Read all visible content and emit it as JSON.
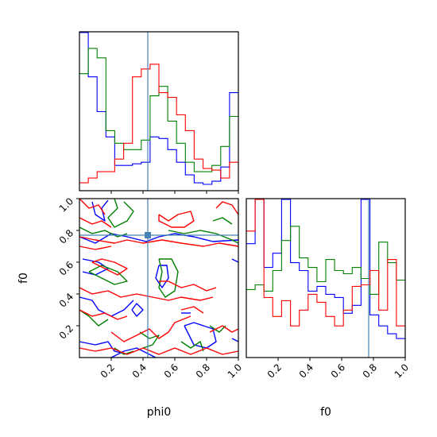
{
  "chart_data": {
    "type": "corner",
    "parameters": [
      "phi0",
      "f0"
    ],
    "axis_labels": {
      "x_left": "phi0",
      "x_right": "f0",
      "y_left": "f0"
    },
    "ticks": [
      "0.2",
      "0.4",
      "0.6",
      "0.8",
      "1.0"
    ],
    "tick_values": [
      0.2,
      0.4,
      0.6,
      0.8,
      1.0
    ],
    "xlim": [
      0,
      1
    ],
    "ylim": [
      0,
      1
    ],
    "truth": {
      "phi0": 0.43,
      "f0": 0.77
    },
    "colors": {
      "blue": "#0000ff",
      "green": "#008000",
      "red": "#ff0000",
      "truth": "#4682b4"
    },
    "series": [
      {
        "color": "blue",
        "hist_phi0": [
          1.0,
          0.72,
          0.5,
          0.34,
          0.16,
          0.16,
          0.17,
          0.18,
          0.34,
          0.33,
          0.26,
          0.18,
          0.1,
          0.05,
          0.04,
          0.06,
          0.15,
          0.62
        ],
        "hist_f0": [
          0.72,
          1.0,
          0.57,
          0.66,
          1.0,
          0.6,
          0.55,
          0.42,
          0.45,
          0.4,
          0.38,
          0.28,
          0.33,
          1.0,
          0.27,
          0.2,
          0.15,
          0.12
        ],
        "contours": [
          [
            [
              0.08,
              0.98
            ],
            [
              0.1,
              0.9
            ],
            [
              0.16,
              0.86
            ],
            [
              0.14,
              0.94
            ],
            [
              0.18,
              0.99
            ]
          ],
          [
            [
              0.0,
              0.76
            ],
            [
              0.1,
              0.72
            ],
            [
              0.2,
              0.78
            ],
            [
              0.3,
              0.76
            ],
            [
              0.42,
              0.73
            ],
            [
              0.5,
              0.76
            ],
            [
              0.6,
              0.78
            ],
            [
              0.72,
              0.76
            ],
            [
              0.84,
              0.73
            ],
            [
              1.0,
              0.74
            ]
          ],
          [
            [
              0.5,
              0.58
            ],
            [
              0.48,
              0.5
            ],
            [
              0.52,
              0.44
            ],
            [
              0.56,
              0.5
            ],
            [
              0.55,
              0.58
            ],
            [
              0.5,
              0.58
            ]
          ],
          [
            [
              0.02,
              0.62
            ],
            [
              0.12,
              0.6
            ],
            [
              0.18,
              0.56
            ],
            [
              0.1,
              0.52
            ],
            [
              0.02,
              0.54
            ]
          ],
          [
            [
              0.0,
              0.38
            ],
            [
              0.08,
              0.36
            ],
            [
              0.12,
              0.3
            ],
            [
              0.2,
              0.26
            ],
            [
              0.28,
              0.3
            ],
            [
              0.34,
              0.36
            ]
          ],
          [
            [
              0.33,
              0.3
            ],
            [
              0.36,
              0.26
            ],
            [
              0.4,
              0.3
            ],
            [
              0.36,
              0.34
            ],
            [
              0.33,
              0.3
            ]
          ],
          [
            [
              0.0,
              0.1
            ],
            [
              0.1,
              0.08
            ],
            [
              0.18,
              0.1
            ],
            [
              0.22,
              0.04
            ],
            [
              0.3,
              0.02
            ]
          ],
          [
            [
              0.2,
              0.0
            ],
            [
              0.28,
              0.04
            ],
            [
              0.36,
              0.06
            ],
            [
              0.42,
              0.03
            ],
            [
              0.48,
              0.0
            ]
          ],
          [
            [
              0.66,
              0.2
            ],
            [
              0.72,
              0.22
            ],
            [
              0.78,
              0.2
            ],
            [
              0.84,
              0.18
            ],
            [
              0.86,
              0.1
            ],
            [
              0.8,
              0.06
            ],
            [
              0.72,
              0.08
            ],
            [
              0.66,
              0.2
            ]
          ],
          [
            [
              0.64,
              0.28
            ],
            [
              0.7,
              0.28
            ]
          ],
          [
            [
              0.96,
              0.62
            ],
            [
              1.0,
              0.6
            ]
          ],
          [
            [
              0.96,
              0.12
            ],
            [
              1.0,
              0.1
            ]
          ]
        ]
      },
      {
        "color": "green",
        "hist_phi0": [
          0.74,
          0.9,
          0.84,
          0.38,
          0.3,
          0.26,
          0.26,
          0.32,
          0.6,
          0.66,
          0.44,
          0.3,
          0.18,
          0.12,
          0.12,
          0.16,
          0.28,
          0.47
        ],
        "hist_f0": [
          0.43,
          0.46,
          0.42,
          0.55,
          0.74,
          0.83,
          0.63,
          0.57,
          0.48,
          0.62,
          0.55,
          0.53,
          0.57,
          0.5,
          0.4,
          0.73,
          0.6,
          0.49
        ],
        "contours": [
          [
            [
              0.22,
              1.0
            ],
            [
              0.24,
              0.94
            ],
            [
              0.18,
              0.88
            ],
            [
              0.22,
              0.82
            ],
            [
              0.3,
              0.86
            ],
            [
              0.34,
              0.92
            ],
            [
              0.28,
              0.98
            ]
          ],
          [
            [
              0.0,
              0.82
            ],
            [
              0.08,
              0.78
            ],
            [
              0.16,
              0.8
            ],
            [
              0.24,
              0.76
            ],
            [
              0.3,
              0.78
            ]
          ],
          [
            [
              0.56,
              0.8
            ],
            [
              0.66,
              0.78
            ],
            [
              0.76,
              0.8
            ],
            [
              0.86,
              0.78
            ],
            [
              0.96,
              0.74
            ],
            [
              1.0,
              0.72
            ]
          ],
          [
            [
              0.5,
              0.62
            ],
            [
              0.52,
              0.54
            ],
            [
              0.5,
              0.44
            ],
            [
              0.54,
              0.38
            ],
            [
              0.6,
              0.42
            ],
            [
              0.62,
              0.54
            ],
            [
              0.58,
              0.62
            ],
            [
              0.5,
              0.62
            ]
          ],
          [
            [
              0.06,
              0.54
            ],
            [
              0.14,
              0.5
            ],
            [
              0.22,
              0.46
            ],
            [
              0.3,
              0.48
            ],
            [
              0.24,
              0.54
            ],
            [
              0.14,
              0.58
            ],
            [
              0.06,
              0.54
            ]
          ],
          [
            [
              0.0,
              0.3
            ],
            [
              0.06,
              0.26
            ],
            [
              0.12,
              0.2
            ],
            [
              0.18,
              0.24
            ]
          ],
          [
            [
              0.38,
              0.16
            ],
            [
              0.44,
              0.12
            ],
            [
              0.5,
              0.14
            ],
            [
              0.46,
              0.08
            ],
            [
              0.4,
              0.06
            ]
          ],
          [
            [
              0.64,
              0.1
            ],
            [
              0.7,
              0.06
            ],
            [
              0.76,
              0.1
            ],
            [
              0.78,
              0.04
            ]
          ],
          [
            [
              0.22,
              0.06
            ],
            [
              0.28,
              0.02
            ],
            [
              0.34,
              0.04
            ]
          ],
          [
            [
              0.82,
              0.2
            ],
            [
              0.88,
              0.16
            ],
            [
              0.92,
              0.2
            ]
          ],
          [
            [
              0.84,
              0.86
            ],
            [
              0.9,
              0.88
            ],
            [
              0.96,
              0.84
            ]
          ]
        ]
      },
      {
        "color": "red",
        "hist_phi0": [
          0.05,
          0.08,
          0.12,
          0.12,
          0.2,
          0.3,
          0.72,
          0.77,
          0.8,
          0.62,
          0.59,
          0.48,
          0.38,
          0.2,
          0.14,
          0.13,
          0.08,
          0.18
        ],
        "hist_f0": [
          0.8,
          1.0,
          0.38,
          0.26,
          0.36,
          0.2,
          0.3,
          0.4,
          0.35,
          0.26,
          0.2,
          0.3,
          0.45,
          0.46,
          0.55,
          0.3,
          0.62,
          0.2
        ],
        "contours": [
          [
            [
              0.0,
              1.0
            ],
            [
              0.06,
              0.94
            ],
            [
              0.12,
              0.96
            ],
            [
              0.16,
              0.9
            ]
          ],
          [
            [
              0.0,
              0.88
            ],
            [
              0.08,
              0.84
            ],
            [
              0.14,
              0.86
            ],
            [
              0.2,
              0.82
            ]
          ],
          [
            [
              0.5,
              0.9
            ],
            [
              0.56,
              0.86
            ],
            [
              0.62,
              0.9
            ],
            [
              0.7,
              0.92
            ],
            [
              0.72,
              0.86
            ],
            [
              0.66,
              0.82
            ],
            [
              0.58,
              0.82
            ],
            [
              0.5,
              0.86
            ],
            [
              0.5,
              0.9
            ]
          ],
          [
            [
              0.86,
              0.94
            ],
            [
              0.9,
              0.98
            ],
            [
              0.96,
              0.96
            ],
            [
              1.0,
              0.9
            ]
          ],
          [
            [
              0.0,
              0.76
            ],
            [
              0.1,
              0.74
            ],
            [
              0.22,
              0.72
            ],
            [
              0.3,
              0.74
            ],
            [
              0.4,
              0.72
            ],
            [
              0.52,
              0.74
            ],
            [
              0.64,
              0.72
            ],
            [
              0.78,
              0.7
            ],
            [
              0.88,
              0.72
            ],
            [
              1.0,
              0.7
            ]
          ],
          [
            [
              0.0,
              0.7
            ],
            [
              0.1,
              0.68
            ],
            [
              0.2,
              0.7
            ]
          ],
          [
            [
              0.08,
              0.6
            ],
            [
              0.16,
              0.56
            ],
            [
              0.24,
              0.52
            ],
            [
              0.3,
              0.56
            ],
            [
              0.22,
              0.6
            ],
            [
              0.14,
              0.62
            ],
            [
              0.08,
              0.6
            ]
          ],
          [
            [
              0.0,
              0.44
            ],
            [
              0.08,
              0.4
            ],
            [
              0.18,
              0.42
            ],
            [
              0.26,
              0.38
            ],
            [
              0.36,
              0.4
            ],
            [
              0.46,
              0.38
            ],
            [
              0.56,
              0.36
            ],
            [
              0.64,
              0.38
            ],
            [
              0.76,
              0.36
            ],
            [
              0.84,
              0.38
            ]
          ],
          [
            [
              0.56,
              0.48
            ],
            [
              0.64,
              0.44
            ],
            [
              0.72,
              0.46
            ],
            [
              0.8,
              0.42
            ],
            [
              0.86,
              0.44
            ]
          ],
          [
            [
              0.0,
              0.3
            ],
            [
              0.08,
              0.26
            ],
            [
              0.16,
              0.28
            ],
            [
              0.24,
              0.24
            ],
            [
              0.3,
              0.26
            ]
          ],
          [
            [
              0.2,
              0.16
            ],
            [
              0.28,
              0.1
            ],
            [
              0.36,
              0.14
            ],
            [
              0.44,
              0.18
            ],
            [
              0.5,
              0.12
            ],
            [
              0.56,
              0.16
            ],
            [
              0.6,
              0.22
            ],
            [
              0.7,
              0.26
            ]
          ],
          [
            [
              0.0,
              0.06
            ],
            [
              0.1,
              0.04
            ],
            [
              0.2,
              0.06
            ],
            [
              0.3,
              0.02
            ],
            [
              0.4,
              0.06
            ],
            [
              0.5,
              0.02
            ],
            [
              0.6,
              0.06
            ],
            [
              0.7,
              0.02
            ],
            [
              0.8,
              0.06
            ],
            [
              0.9,
              0.02
            ],
            [
              1.0,
              0.04
            ]
          ],
          [
            [
              0.82,
              0.16
            ],
            [
              0.9,
              0.2
            ],
            [
              0.96,
              0.16
            ],
            [
              1.0,
              0.18
            ]
          ],
          [
            [
              0.5,
              0.48
            ],
            [
              0.56,
              0.48
            ]
          ],
          [
            [
              0.64,
              0.3
            ],
            [
              0.72,
              0.32
            ],
            [
              0.78,
              0.28
            ]
          ]
        ]
      }
    ]
  }
}
